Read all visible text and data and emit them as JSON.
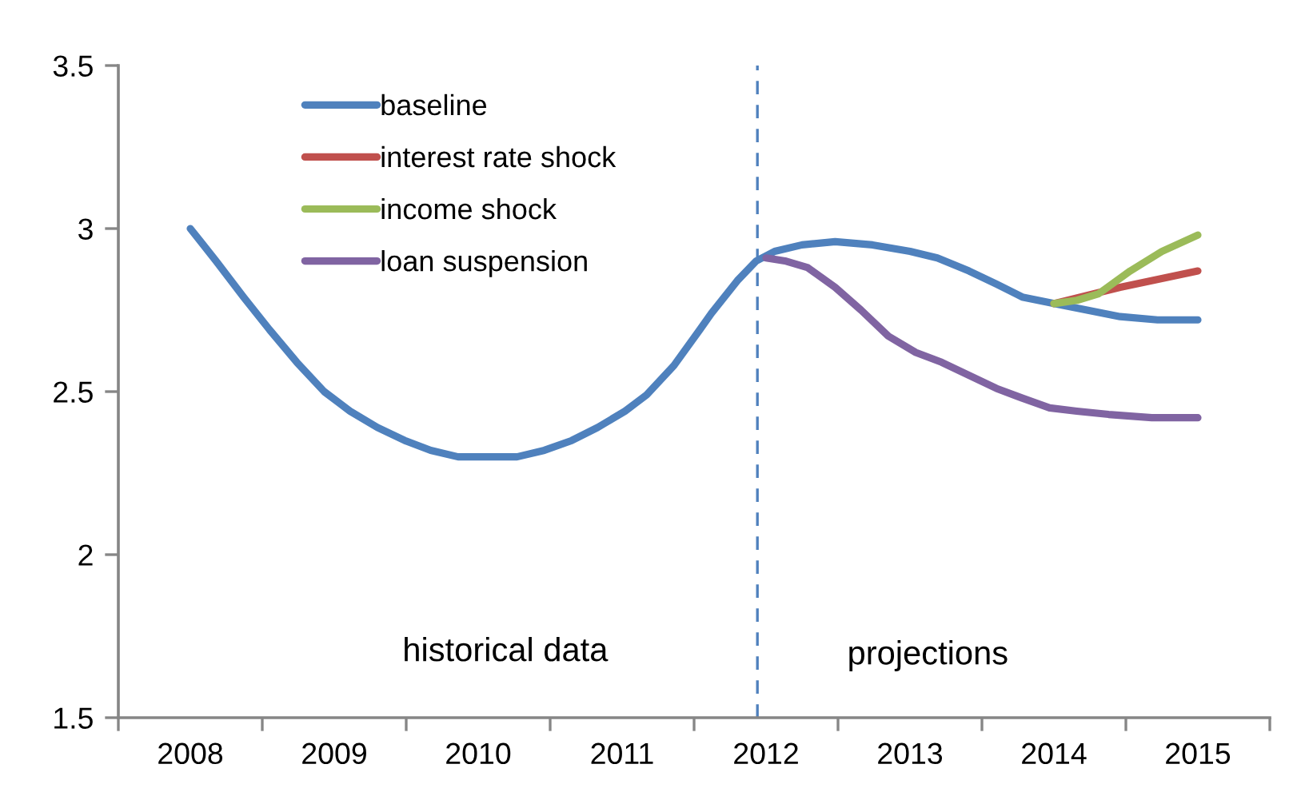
{
  "chart_data": {
    "type": "line",
    "series": [
      {
        "name": "baseline",
        "color": "#4f81bd",
        "x": [
          2008,
          2008.18,
          2008.37,
          2008.55,
          2008.74,
          2008.93,
          2009.11,
          2009.3,
          2009.49,
          2009.67,
          2009.86,
          2010.09,
          2010.27,
          2010.46,
          2010.65,
          2010.83,
          2011.02,
          2011.17,
          2011.36,
          2011.54,
          2011.62,
          2011.8,
          2011.93,
          2012.06,
          2012.25,
          2012.48,
          2012.74,
          2013,
          2013.19,
          2013.41,
          2013.6,
          2013.78,
          2014,
          2014.23,
          2014.46,
          2014.72,
          2015
        ],
        "values": [
          3.0,
          2.9,
          2.79,
          2.69,
          2.59,
          2.5,
          2.44,
          2.39,
          2.35,
          2.32,
          2.3,
          2.3,
          2.3,
          2.32,
          2.35,
          2.39,
          2.44,
          2.49,
          2.58,
          2.69,
          2.74,
          2.84,
          2.9,
          2.93,
          2.95,
          2.96,
          2.95,
          2.93,
          2.91,
          2.87,
          2.83,
          2.79,
          2.77,
          2.75,
          2.73,
          2.72,
          2.72
        ]
      },
      {
        "name": "interest rate shock",
        "color": "#c0504d",
        "x": [
          2014,
          2014.46,
          2015
        ],
        "values": [
          2.77,
          2.82,
          2.87
        ]
      },
      {
        "name": "income shock",
        "color": "#9bbb59",
        "x": [
          2014,
          2014.16,
          2014.31,
          2014.53,
          2014.75,
          2015
        ],
        "values": [
          2.77,
          2.78,
          2.8,
          2.87,
          2.93,
          2.98
        ]
      },
      {
        "name": "loan suspension",
        "color": "#8064a2",
        "x": [
          2012,
          2012.14,
          2012.29,
          2012.48,
          2012.66,
          2012.85,
          2013.04,
          2013.22,
          2013.41,
          2013.6,
          2013.78,
          2013.97,
          2014.16,
          2014.38,
          2014.68,
          2015
        ],
        "values": [
          2.91,
          2.9,
          2.88,
          2.82,
          2.75,
          2.67,
          2.62,
          2.59,
          2.55,
          2.51,
          2.48,
          2.45,
          2.44,
          2.43,
          2.42,
          2.42
        ]
      }
    ],
    "xlim": [
      2007.5,
      2015.5
    ],
    "xticks": [
      {
        "value": 2007.5,
        "label": null
      },
      2008,
      {
        "value": 2008.5,
        "label": null
      },
      2009,
      {
        "value": 2009.5,
        "label": null
      },
      2010,
      {
        "value": 2010.5,
        "label": null
      },
      2011,
      {
        "value": 2011.5,
        "label": null
      },
      2012,
      {
        "value": 2012.5,
        "label": null
      },
      2013,
      {
        "value": 2013.5,
        "label": null
      },
      2014,
      {
        "value": 2014.5,
        "label": null
      },
      2015,
      {
        "value": 2015.5,
        "label": null
      }
    ],
    "ylim": [
      1.5,
      3.5
    ],
    "yticks": [
      1.5,
      2,
      2.5,
      3,
      3.5
    ],
    "legend": "top left",
    "ref_lines": [
      {
        "axis": "x",
        "value": 2011.94,
        "color": "#4f81bd",
        "line_style": "dashed"
      }
    ],
    "annotations": [
      "historical data",
      "projections"
    ]
  }
}
